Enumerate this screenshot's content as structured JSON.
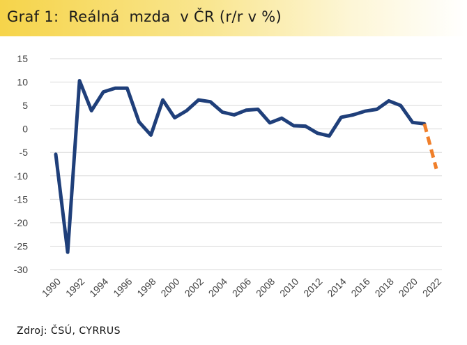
{
  "header": {
    "title": "Graf 1:  Reálná  mzda  v ČR (r/r v %)"
  },
  "footer": {
    "source": "Zdroj: ČSÚ, CYRRUS"
  },
  "chart_data": {
    "type": "line",
    "title": "Graf 1:  Reálná  mzda  v ČR (r/r v %)",
    "xlabel": "",
    "ylabel": "",
    "xlim": [
      1990,
      2022
    ],
    "ylim": [
      -30,
      15
    ],
    "yticks": [
      15,
      10,
      5,
      0,
      -5,
      -10,
      -15,
      -20,
      -25,
      -30
    ],
    "xticks": [
      "1990",
      "1992",
      "1994",
      "1996",
      "1998",
      "2000",
      "2002",
      "2004",
      "2006",
      "2008",
      "2010",
      "2012",
      "2014",
      "2016",
      "2018",
      "2020",
      "2022"
    ],
    "grid": true,
    "legend": "none",
    "series": [
      {
        "style": "solid",
        "color": "#1f3f7a",
        "x": [
          1990,
          1991,
          1992,
          1993,
          1994,
          1995,
          1996,
          1997,
          1998,
          1999,
          2000,
          2001,
          2002,
          2003,
          2004,
          2005,
          2006,
          2007,
          2008,
          2009,
          2010,
          2011,
          2012,
          2013,
          2014,
          2015,
          2016,
          2017,
          2018,
          2019,
          2020,
          2021
        ],
        "y": [
          -5.4,
          -26.3,
          10.3,
          3.9,
          7.9,
          8.7,
          8.7,
          1.5,
          -1.3,
          6.2,
          2.4,
          3.9,
          6.2,
          5.8,
          3.6,
          3.0,
          4.0,
          4.2,
          1.3,
          2.3,
          0.7,
          0.6,
          -0.9,
          -1.5,
          2.5,
          3.0,
          3.8,
          4.2,
          6.0,
          5.0,
          1.4,
          1.1
        ]
      },
      {
        "style": "dashed",
        "color": "#f07f2a",
        "x": [
          2021,
          2022
        ],
        "y": [
          1.1,
          -8.5
        ]
      }
    ]
  }
}
